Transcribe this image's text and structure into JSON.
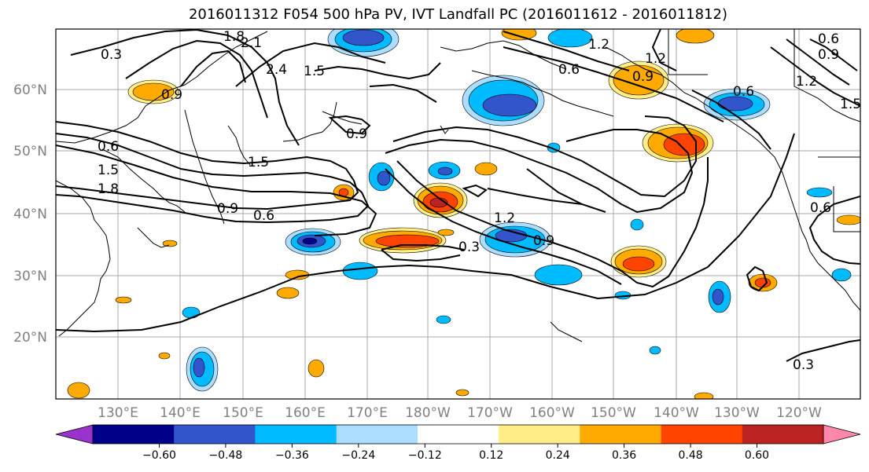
{
  "title": "2016011312 F054 500 hPa PV, IVT Landfall PC (2016011612 - 2016011812)",
  "map": {
    "lat_labels": [
      "60°N",
      "50°N",
      "40°N",
      "30°N",
      "20°N"
    ],
    "lon_labels": [
      "130°E",
      "140°E",
      "150°E",
      "160°E",
      "170°E",
      "180°W",
      "170°W",
      "160°W",
      "150°W",
      "140°W",
      "130°W",
      "120°W"
    ],
    "pv_contour_labels": [
      "0.3",
      "1.8",
      "2.1",
      "2.4",
      "1.5",
      "0.6",
      "1.5",
      "1.8",
      "0.9",
      "0.6",
      "0.9",
      "1.5",
      "1.2",
      "0.9",
      "0.6",
      "1.2",
      "0.9",
      "0.3",
      "1.2",
      "0.6",
      "1.5",
      "1.2",
      "0.9",
      "0.6",
      "0.6",
      "0.3",
      "0.9"
    ]
  },
  "colorbar": {
    "colors": [
      "#9933cc",
      "#000088",
      "#3355cc",
      "#00bbff",
      "#aaddff",
      "#ffffff",
      "#ffee88",
      "#ffaa00",
      "#ff4400",
      "#bb2222",
      "#ff88aa"
    ],
    "tick_labels": [
      "−0.60",
      "−0.48",
      "−0.36",
      "−0.24",
      "−0.12",
      "0.12",
      "0.24",
      "0.36",
      "0.48",
      "0.60"
    ]
  }
}
